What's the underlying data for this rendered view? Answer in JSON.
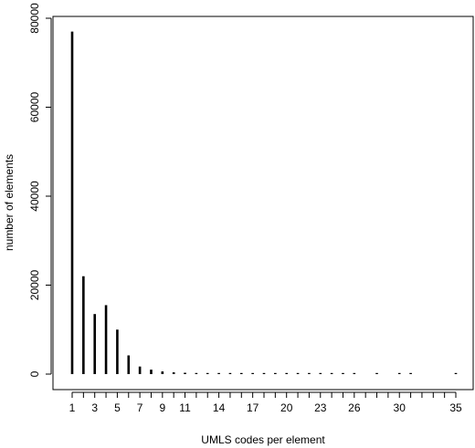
{
  "chart_data": {
    "type": "bar",
    "style": "vertical-lines",
    "xlabel": "UMLS codes per element",
    "ylabel": "number of elements",
    "xlim": [
      0,
      36
    ],
    "ylim": [
      0,
      80000
    ],
    "x_ticks": [
      1,
      3,
      5,
      7,
      9,
      11,
      14,
      17,
      20,
      23,
      26,
      30,
      35
    ],
    "y_ticks": [
      0,
      20000,
      40000,
      60000,
      80000
    ],
    "x": [
      1,
      2,
      3,
      4,
      5,
      6,
      7,
      8,
      9,
      10,
      11,
      12,
      13,
      14,
      15,
      16,
      17,
      18,
      19,
      20,
      21,
      22,
      23,
      24,
      25,
      26,
      28,
      30,
      31,
      35
    ],
    "values": [
      77000,
      22000,
      13500,
      15500,
      10000,
      4200,
      1700,
      1000,
      600,
      400,
      300,
      250,
      150,
      120,
      100,
      80,
      70,
      60,
      50,
      45,
      40,
      35,
      30,
      25,
      20,
      20,
      15,
      10,
      10,
      5
    ],
    "grid": false,
    "box": true,
    "bar_color": "#000000"
  }
}
